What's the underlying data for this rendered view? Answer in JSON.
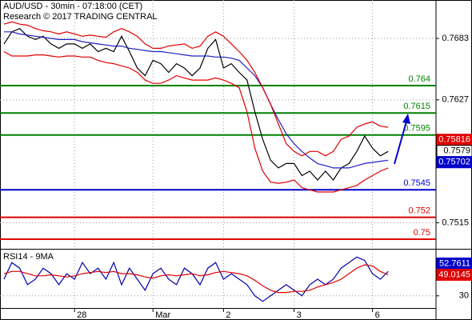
{
  "chart_data": [
    {
      "type": "line",
      "title": "AUD/USD - 30min - 07:18:00 (CET)",
      "subtitle": "Research © 2017 TRADING CENTRAL",
      "ylim": [
        0.7492,
        0.7718
      ],
      "yticks": [
        0.7683,
        0.7627,
        0.7515
      ],
      "grid": true,
      "series": [
        {
          "color": "#000000",
          "values": [
            0.7678,
            0.7689,
            0.7692,
            0.7685,
            0.7682,
            0.7685,
            0.7678,
            0.7674,
            0.7678,
            0.7678,
            0.7674,
            0.7678,
            0.7671,
            0.7674,
            0.7671,
            0.7685,
            0.7671,
            0.7656,
            0.7649,
            0.7663,
            0.766,
            0.7652,
            0.766,
            0.7656,
            0.7649,
            0.7656,
            0.7674,
            0.7682,
            0.7656,
            0.766,
            0.7652,
            0.7645,
            0.7616,
            0.7591,
            0.7572,
            0.7565,
            0.7569,
            0.7569,
            0.7558,
            0.7562,
            0.7554,
            0.7562,
            0.7554,
            0.7565,
            0.7569,
            0.758,
            0.7594,
            0.7583,
            0.7576,
            0.758
          ]
        },
        {
          "color": "#2020c0",
          "values": [
            0.7689,
            0.7689,
            0.7687,
            0.7686,
            0.7685,
            0.7684,
            0.7683,
            0.7682,
            0.7682,
            0.7682,
            0.768,
            0.7679,
            0.7678,
            0.7677,
            0.7676,
            0.7676,
            0.7674,
            0.7673,
            0.7672,
            0.7671,
            0.7671,
            0.767,
            0.7669,
            0.7668,
            0.7667,
            0.7667,
            0.7667,
            0.7666,
            0.7666,
            0.7665,
            0.7663,
            0.7656,
            0.7649,
            0.7638,
            0.7623,
            0.7609,
            0.7596,
            0.7587,
            0.758,
            0.7574,
            0.7569,
            0.7567,
            0.7565,
            0.7565,
            0.7565,
            0.7567,
            0.7569,
            0.757,
            0.7571,
            0.7572
          ]
        },
        {
          "color": "#e00000",
          "values": [
            0.7696,
            0.7698,
            0.7696,
            0.7695,
            0.7692,
            0.769,
            0.7689,
            0.7687,
            0.7689,
            0.7687,
            0.7685,
            0.7686,
            0.7685,
            0.7684,
            0.7689,
            0.7692,
            0.7689,
            0.7685,
            0.7678,
            0.7674,
            0.7674,
            0.7676,
            0.7677,
            0.7678,
            0.7674,
            0.7676,
            0.7685,
            0.7689,
            0.7685,
            0.7678,
            0.7671,
            0.7663,
            0.7652,
            0.7638,
            0.7623,
            0.7605,
            0.7587,
            0.758,
            0.7576,
            0.758,
            0.758,
            0.7576,
            0.758,
            0.7591,
            0.7594,
            0.7602,
            0.7605,
            0.7607,
            0.7603,
            0.7602
          ]
        },
        {
          "color": "#e00000",
          "values": [
            0.7671,
            0.7667,
            0.7667,
            0.7667,
            0.7668,
            0.7668,
            0.7667,
            0.7666,
            0.7667,
            0.7667,
            0.7666,
            0.7666,
            0.7663,
            0.7661,
            0.766,
            0.7658,
            0.7656,
            0.7652,
            0.7645,
            0.7642,
            0.7642,
            0.7645,
            0.7649,
            0.7647,
            0.7645,
            0.7645,
            0.7645,
            0.7647,
            0.7645,
            0.7642,
            0.7638,
            0.7616,
            0.7583,
            0.7562,
            0.7552,
            0.7551,
            0.7552,
            0.7554,
            0.7547,
            0.7545,
            0.7543,
            0.7543,
            0.7543,
            0.7545,
            0.7547,
            0.7549,
            0.7554,
            0.7558,
            0.7562,
            0.7565
          ]
        }
      ],
      "levels": [
        {
          "value": 0.764,
          "color": "#008000"
        },
        {
          "value": 0.7615,
          "color": "#008000"
        },
        {
          "value": 0.7595,
          "color": "#008000"
        },
        {
          "value": 0.7545,
          "color": "#0000cc"
        },
        {
          "value": 0.752,
          "color": "#e00000"
        },
        {
          "value": 0.75,
          "color": "#e00000"
        }
      ],
      "price_labels": [
        {
          "value": 0.75816,
          "color": "#e00000",
          "text_color": "#ffffff"
        },
        {
          "value": 0.7579,
          "color": "#ffffff",
          "text_color": "#000000"
        },
        {
          "value": 0.75702,
          "color": "#0000cc",
          "text_color": "#ffffff"
        }
      ]
    },
    {
      "type": "line",
      "title": "RSI14 - 9MA",
      "categories": [
        null,
        null,
        null,
        null,
        null,
        null,
        null,
        null,
        null,
        "28",
        null,
        null,
        null,
        null,
        null,
        null,
        null,
        null,
        null,
        "Mar",
        null,
        null,
        null,
        null,
        null,
        null,
        null,
        null,
        "2",
        null,
        null,
        null,
        null,
        null,
        null,
        null,
        null,
        "3",
        null,
        null,
        null,
        null,
        null,
        null,
        null,
        null,
        null,
        "6",
        null,
        null
      ],
      "ylim": [
        19,
        71
      ],
      "yticks": [
        30
      ],
      "grid": true,
      "series": [
        {
          "color": "#0000aa",
          "values": [
            45,
            60,
            55,
            40,
            45,
            55,
            50,
            40,
            50,
            45,
            60,
            50,
            55,
            45,
            60,
            40,
            55,
            45,
            35,
            50,
            55,
            45,
            40,
            55,
            50,
            40,
            55,
            60,
            45,
            50,
            45,
            40,
            30,
            25,
            30,
            35,
            40,
            35,
            30,
            40,
            45,
            40,
            45,
            55,
            60,
            65,
            62,
            50,
            45,
            52
          ]
        },
        {
          "color": "#e00000",
          "values": [
            50,
            52,
            52,
            50,
            48,
            48,
            49,
            48,
            47,
            48,
            50,
            51,
            52,
            51,
            52,
            50,
            50,
            49,
            47,
            46,
            48,
            49,
            48,
            49,
            50,
            48,
            49,
            51,
            52,
            51,
            50,
            48,
            44,
            39,
            35,
            33,
            33,
            34,
            34,
            35,
            38,
            40,
            42,
            45,
            50,
            55,
            58,
            57,
            52,
            49
          ]
        }
      ],
      "price_labels": [
        {
          "value": 52.7611,
          "color": "#0000cc",
          "text_color": "#ffffff"
        },
        {
          "value": 49.0145,
          "color": "#e00000",
          "text_color": "#ffffff"
        }
      ]
    }
  ]
}
